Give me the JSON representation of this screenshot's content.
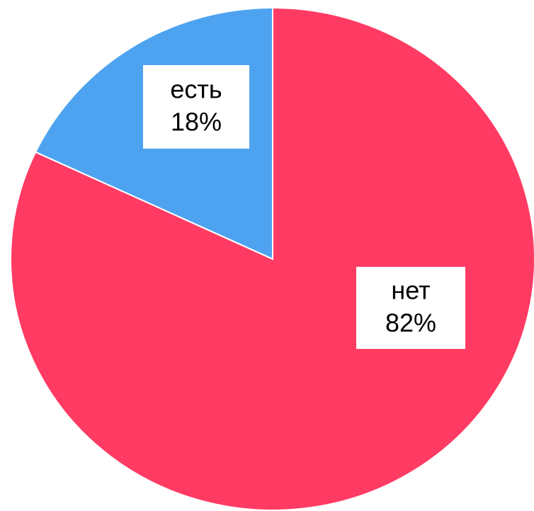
{
  "chart_data": {
    "type": "pie",
    "categories": [
      "нет",
      "есть"
    ],
    "values": [
      82,
      18
    ],
    "value_labels": [
      "82%",
      "18%"
    ],
    "colors": [
      "#ff3b63",
      "#4da3f0"
    ]
  }
}
